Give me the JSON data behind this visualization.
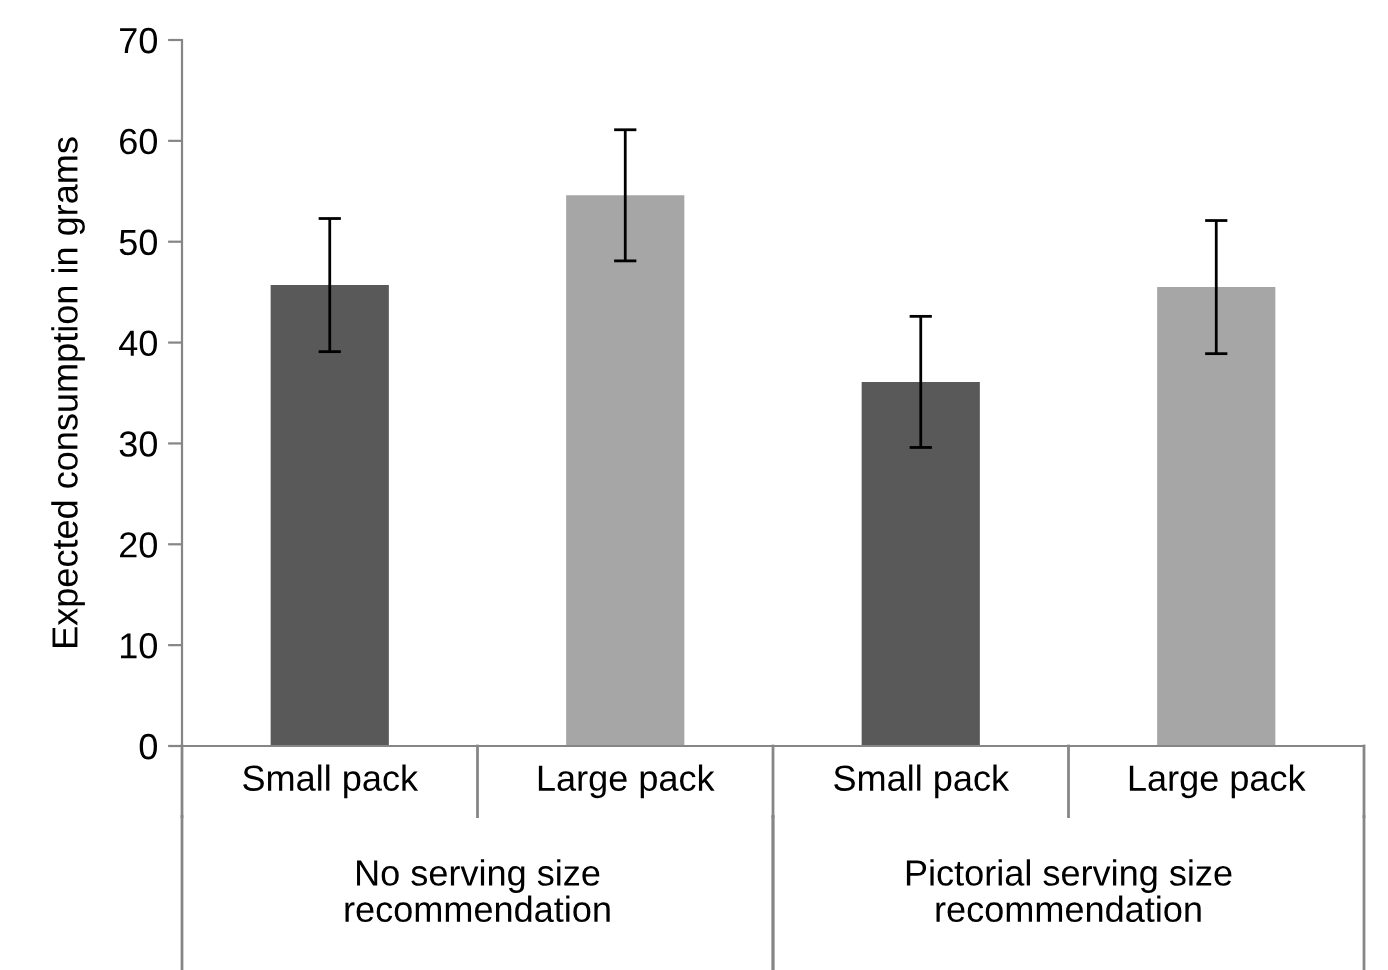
{
  "chart_data": {
    "type": "bar",
    "ylabel": "Expected consumption in grams",
    "categories": [
      "Small pack",
      "Large pack",
      "Small pack",
      "Large pack"
    ],
    "values": [
      45.7,
      54.6,
      36.1,
      45.5
    ],
    "errors": [
      6.6,
      6.5,
      6.5,
      6.6
    ],
    "colors": [
      "#595959",
      "#a6a6a6",
      "#595959",
      "#a6a6a6"
    ],
    "annotations": [
      "No serving size\nrecommendation",
      "Pictorial serving size\nrecommendation"
    ],
    "ylim": [
      0,
      70
    ],
    "yticks": [
      0,
      10,
      20,
      30,
      40,
      50,
      60,
      70
    ],
    "grid": false
  }
}
